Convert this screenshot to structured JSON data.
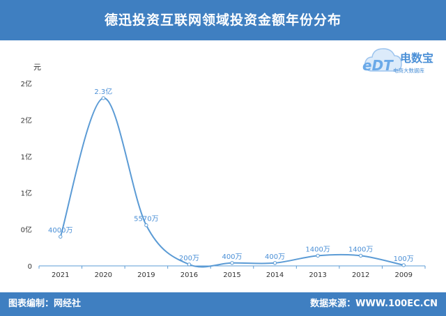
{
  "header": {
    "title": "德迅投资互联网领域投资金额年份分布"
  },
  "footer": {
    "left": "图表编制：网经社",
    "right": "数据来源：WWW.100EC.CN"
  },
  "logo": {
    "name": "电数宝",
    "subtitle": "电商大数据库",
    "mark": "eDT"
  },
  "colors": {
    "header_bg": "#3f7fc1",
    "line": "#5b9bd5",
    "data_label": "#4a8fd6"
  },
  "chart_data": {
    "type": "line",
    "unit_label": "元",
    "categories": [
      "2021",
      "2020",
      "2019",
      "2016",
      "2015",
      "2014",
      "2013",
      "2012",
      "2009"
    ],
    "values_yuan": [
      40000000,
      230000000,
      55700000,
      2000000,
      4000000,
      4000000,
      14000000,
      14000000,
      1000000
    ],
    "data_labels": [
      "4000万",
      "2.3亿",
      "5570万",
      "200万",
      "400万",
      "400万",
      "1400万",
      "1400万",
      "100万"
    ],
    "y_tick_labels": [
      "0",
      "0亿",
      "1亿",
      "1亿",
      "2亿",
      "2亿"
    ],
    "ylim": [
      0,
      250000000
    ],
    "smooth": true,
    "grid": false,
    "legend": "none"
  }
}
